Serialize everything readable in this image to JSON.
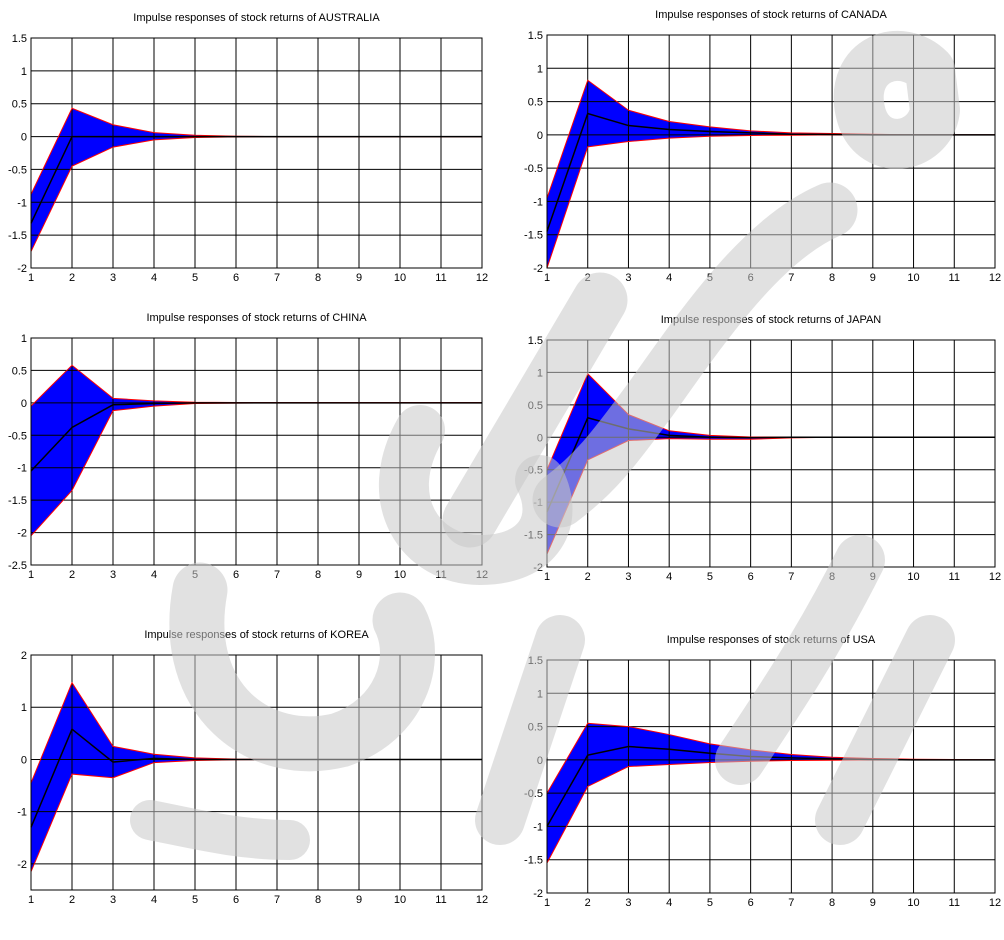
{
  "chart_data": [
    {
      "type": "area",
      "title": "Impulse responses of stock returns of AUSTRALIA",
      "x": [
        1,
        2,
        3,
        4,
        5,
        6,
        7,
        8,
        9,
        10,
        11,
        12
      ],
      "xlim": [
        1,
        12
      ],
      "ylim": [
        -2,
        1.5
      ],
      "yticks": [
        -2,
        -1.5,
        -1,
        -0.5,
        0,
        0.5,
        1,
        1.5
      ],
      "grid": true,
      "series": [
        {
          "role": "upper",
          "values": [
            -0.88,
            0.43,
            0.18,
            0.06,
            0.02,
            0.005,
            0,
            0,
            0,
            0,
            0,
            0
          ]
        },
        {
          "role": "center",
          "values": [
            -1.32,
            0.0,
            0.0,
            0.0,
            0.0,
            0,
            0,
            0,
            0,
            0,
            0,
            0
          ]
        },
        {
          "role": "lower",
          "values": [
            -1.75,
            -0.45,
            -0.16,
            -0.05,
            -0.015,
            -0.005,
            0,
            0,
            0,
            0,
            0,
            0
          ]
        }
      ]
    },
    {
      "type": "area",
      "title": "Impulse responses of stock returns of CANADA",
      "x": [
        1,
        2,
        3,
        4,
        5,
        6,
        7,
        8,
        9,
        10,
        11,
        12
      ],
      "xlim": [
        1,
        12
      ],
      "ylim": [
        -2,
        1.5
      ],
      "yticks": [
        -2,
        -1.5,
        -1,
        -0.5,
        0,
        0.5,
        1,
        1.5
      ],
      "grid": true,
      "series": [
        {
          "role": "upper",
          "values": [
            -0.95,
            0.82,
            0.37,
            0.2,
            0.12,
            0.06,
            0.03,
            0.02,
            0.01,
            0,
            0,
            0
          ]
        },
        {
          "role": "center",
          "values": [
            -1.45,
            0.32,
            0.14,
            0.08,
            0.05,
            0.03,
            0.01,
            0.005,
            0,
            0,
            0,
            0
          ]
        },
        {
          "role": "lower",
          "values": [
            -2.0,
            -0.18,
            -0.1,
            -0.05,
            -0.02,
            -0.01,
            -0.005,
            0,
            0,
            0,
            0,
            0
          ]
        }
      ]
    },
    {
      "type": "area",
      "title": "Impulse responses of stock returns of CHINA",
      "x": [
        1,
        2,
        3,
        4,
        5,
        6,
        7,
        8,
        9,
        10,
        11,
        12
      ],
      "xlim": [
        1,
        12
      ],
      "ylim": [
        -2.5,
        1
      ],
      "yticks": [
        -2.5,
        -2,
        -1.5,
        -1,
        -0.5,
        0,
        0.5,
        1
      ],
      "grid": true,
      "series": [
        {
          "role": "upper",
          "values": [
            -0.05,
            0.58,
            0.07,
            0.03,
            0.01,
            0.005,
            0.005,
            0.005,
            0.005,
            0.005,
            0.005,
            0.005
          ]
        },
        {
          "role": "center",
          "values": [
            -1.05,
            -0.38,
            -0.03,
            -0.01,
            0,
            0,
            0,
            0,
            0,
            0,
            0,
            0
          ]
        },
        {
          "role": "lower",
          "values": [
            -2.05,
            -1.35,
            -0.12,
            -0.05,
            -0.01,
            -0.005,
            0,
            0,
            0,
            0,
            0,
            0
          ]
        }
      ]
    },
    {
      "type": "area",
      "title": "Impulse responses of stock returns of JAPAN",
      "x": [
        1,
        2,
        3,
        4,
        5,
        6,
        7,
        8,
        9,
        10,
        11,
        12
      ],
      "xlim": [
        1,
        12
      ],
      "ylim": [
        -2,
        1.5
      ],
      "yticks": [
        -2,
        -1.5,
        -1,
        -0.5,
        0,
        0.5,
        1,
        1.5
      ],
      "grid": true,
      "series": [
        {
          "role": "upper",
          "values": [
            -0.5,
            0.98,
            0.35,
            0.1,
            0.03,
            0.005,
            0,
            0,
            0,
            0,
            0,
            0
          ]
        },
        {
          "role": "center",
          "values": [
            -1.15,
            0.3,
            0.13,
            0.03,
            0.0,
            -0.005,
            0,
            0,
            0,
            0,
            0,
            0
          ]
        },
        {
          "role": "lower",
          "values": [
            -1.8,
            -0.35,
            -0.05,
            -0.02,
            -0.03,
            -0.03,
            -0.01,
            0,
            0,
            0,
            0,
            0
          ]
        }
      ]
    },
    {
      "type": "area",
      "title": "Impulse responses of stock returns of KOREA",
      "x": [
        1,
        2,
        3,
        4,
        5,
        6,
        7,
        8,
        9,
        10,
        11,
        12
      ],
      "xlim": [
        1,
        12
      ],
      "ylim": [
        -2.5,
        2
      ],
      "yticks": [
        -2,
        -1,
        0,
        1,
        2
      ],
      "grid": true,
      "series": [
        {
          "role": "upper",
          "values": [
            -0.45,
            1.47,
            0.25,
            0.1,
            0.03,
            0.005,
            0,
            0,
            0,
            0,
            0,
            0
          ]
        },
        {
          "role": "center",
          "values": [
            -1.3,
            0.58,
            -0.05,
            0.02,
            0.0,
            0,
            0,
            0,
            0,
            0,
            0,
            0
          ]
        },
        {
          "role": "lower",
          "values": [
            -2.15,
            -0.28,
            -0.35,
            -0.06,
            -0.02,
            -0.005,
            0,
            0,
            0,
            0,
            0,
            0
          ]
        }
      ]
    },
    {
      "type": "area",
      "title": "Impulse responses of stock returns of USA",
      "x": [
        1,
        2,
        3,
        4,
        5,
        6,
        7,
        8,
        9,
        10,
        11,
        12
      ],
      "xlim": [
        1,
        12
      ],
      "ylim": [
        -2,
        1.5
      ],
      "yticks": [
        -2,
        -1.5,
        -1,
        -0.5,
        0,
        0.5,
        1,
        1.5
      ],
      "grid": true,
      "series": [
        {
          "role": "upper",
          "values": [
            -0.5,
            0.55,
            0.5,
            0.38,
            0.24,
            0.15,
            0.08,
            0.04,
            0.02,
            0.01,
            0.005,
            0
          ]
        },
        {
          "role": "center",
          "values": [
            -1.0,
            0.07,
            0.2,
            0.16,
            0.1,
            0.05,
            0.03,
            0.015,
            0.005,
            0,
            0,
            0
          ]
        },
        {
          "role": "lower",
          "values": [
            -1.55,
            -0.4,
            -0.1,
            -0.07,
            -0.04,
            -0.02,
            -0.01,
            -0.005,
            0,
            0,
            0,
            0
          ]
        }
      ]
    }
  ],
  "colors": {
    "band_fill": "#0000ff",
    "band_edge": "#ff0000",
    "center_line": "#000000",
    "grid": "#000000",
    "watermark": "#c8c8c8"
  }
}
